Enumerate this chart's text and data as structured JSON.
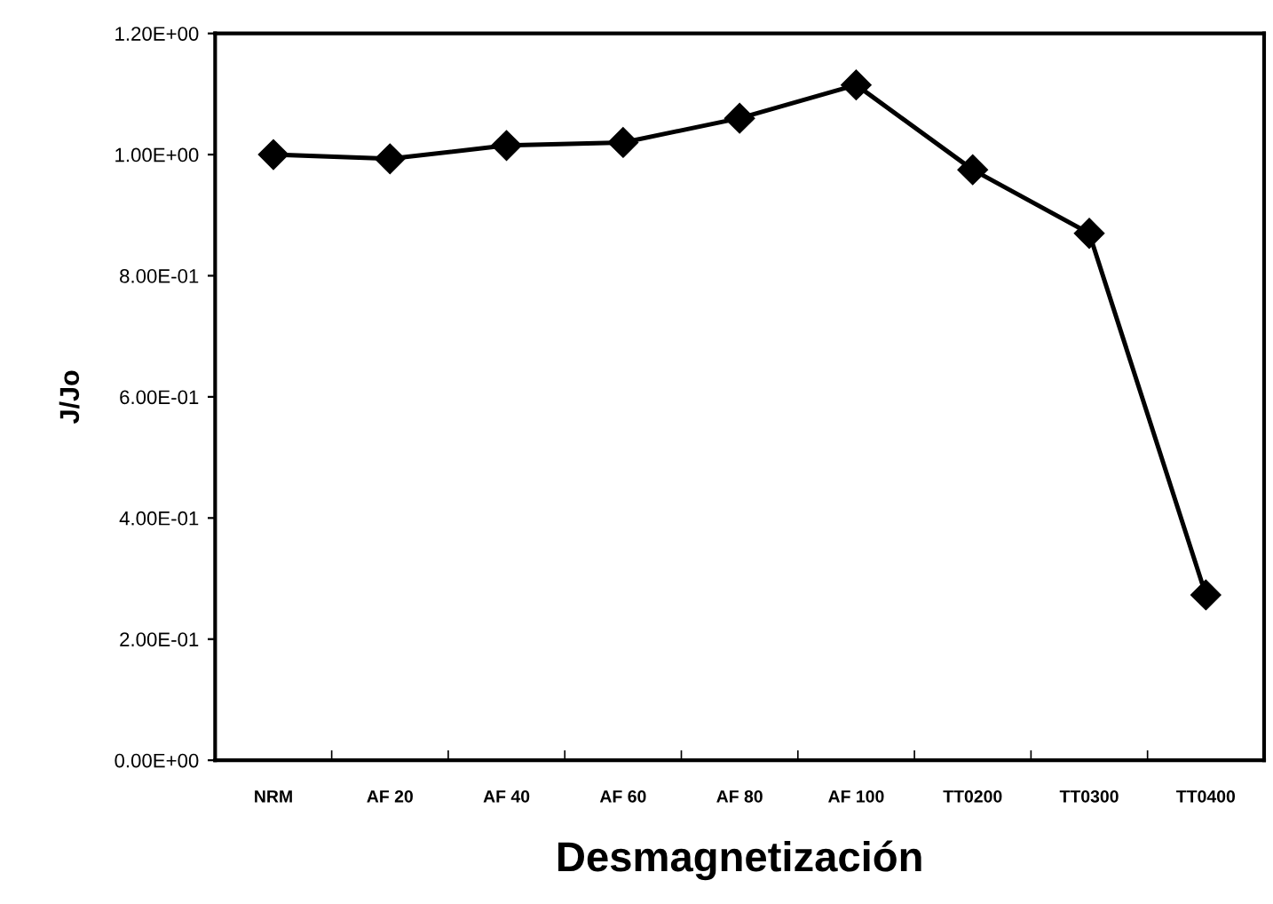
{
  "chart_data": {
    "type": "line",
    "xlabel": "Desmagnetización",
    "ylabel": "J/Jo",
    "categories": [
      "NRM",
      "AF 20",
      "AF 40",
      "AF 60",
      "AF 80",
      "AF 100",
      "TT0200",
      "TT0300",
      "TT0400"
    ],
    "series": [
      {
        "color": "#000000",
        "values": [
          1.0,
          0.993,
          1.015,
          1.02,
          1.06,
          1.115,
          0.975,
          0.87,
          0.273
        ]
      }
    ],
    "ylim": [
      0,
      1.2
    ],
    "yticks": [
      {
        "value": 0,
        "label": "0.00E+00"
      },
      {
        "value": 0.2,
        "label": "2.00E-01"
      },
      {
        "value": 0.4,
        "label": "4.00E-01"
      },
      {
        "value": 0.6,
        "label": "6.00E-01"
      },
      {
        "value": 0.8,
        "label": "8.00E-01"
      },
      {
        "value": 1.0,
        "label": "1.00E+00"
      },
      {
        "value": 1.2,
        "label": "1.20E+00"
      }
    ],
    "grid": false,
    "marker": "diamond",
    "line_style": "solid"
  }
}
